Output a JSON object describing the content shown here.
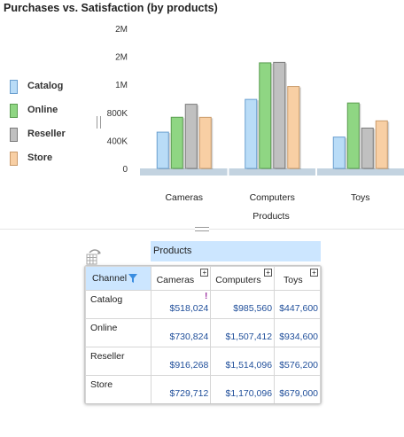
{
  "title": "Purchases vs. Satisfaction (by products)",
  "legend": [
    {
      "label": "Catalog",
      "color": "#b9dcf7",
      "border": "#6a9fcf"
    },
    {
      "label": "Online",
      "color": "#8fd683",
      "border": "#5a9c50"
    },
    {
      "label": "Reseller",
      "color": "#c0c0c0",
      "border": "#7b7b7b"
    },
    {
      "label": "Store",
      "color": "#f8cfa4",
      "border": "#c99a6a"
    }
  ],
  "chart_data": {
    "type": "bar",
    "categories": [
      "Cameras",
      "Computers",
      "Toys"
    ],
    "series": [
      {
        "name": "Catalog",
        "values": [
          518024,
          985560,
          447600
        ]
      },
      {
        "name": "Online",
        "values": [
          730824,
          1507412,
          934600
        ]
      },
      {
        "name": "Reseller",
        "values": [
          916268,
          1514096,
          576200
        ]
      },
      {
        "name": "Store",
        "values": [
          729712,
          1170096,
          679000
        ]
      }
    ],
    "xlabel": "Products",
    "ylabel": "",
    "ylim": [
      0,
      2000000
    ],
    "yticks": [
      0,
      400000,
      800000,
      1200000,
      1600000,
      2000000
    ],
    "ytick_labels": [
      "0",
      "400K",
      "800K",
      "1M",
      "2M",
      "2M"
    ],
    "grid": false,
    "legend_position": "left"
  },
  "pivot": {
    "column_dimension": "Products",
    "row_dimension": "Channel",
    "columns": [
      "Cameras",
      "Computers",
      "Toys"
    ],
    "rows": [
      {
        "label": "Catalog",
        "values": [
          "$518,024",
          "$985,560",
          "$447,600"
        ]
      },
      {
        "label": "Online",
        "values": [
          "$730,824",
          "$1,507,412",
          "$934,600"
        ]
      },
      {
        "label": "Reseller",
        "values": [
          "$916,268",
          "$1,514,096",
          "$576,200"
        ]
      },
      {
        "label": "Store",
        "values": [
          "$729,712",
          "$1,170,096",
          "$679,000"
        ]
      }
    ],
    "expand_symbol": "+",
    "warning_symbol": "!"
  }
}
